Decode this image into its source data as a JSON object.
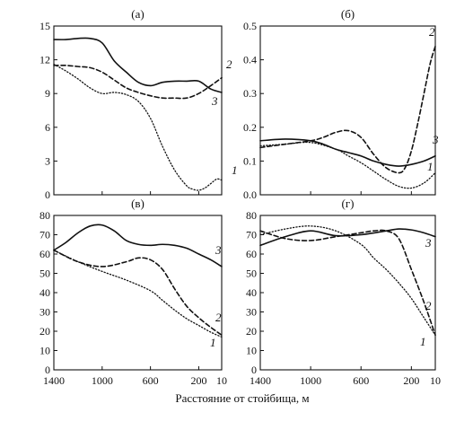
{
  "xlabel": "Расстояние от стойбища, м",
  "chart_data": [
    {
      "panel": "(а)",
      "type": "line",
      "xlabel": "",
      "ylabel": "",
      "xlim": [
        1400,
        10
      ],
      "ylim": [
        0,
        15
      ],
      "yticks": [
        0,
        3,
        6,
        9,
        12,
        15
      ],
      "xticks": [
        1400,
        1000,
        600,
        200,
        10
      ],
      "series": [
        {
          "name": "1",
          "style": "dotted",
          "x": [
            1400,
            1300,
            1200,
            1100,
            1000,
            900,
            800,
            700,
            600,
            500,
            400,
            300,
            250,
            200,
            150,
            100,
            50,
            10
          ],
          "y": [
            11.6,
            11.0,
            10.3,
            9.5,
            9.0,
            9.1,
            8.9,
            8.3,
            6.8,
            4.3,
            2.2,
            0.8,
            0.5,
            0.4,
            0.6,
            1.0,
            1.4,
            1.3
          ]
        },
        {
          "name": "2",
          "style": "solid",
          "x": [
            1400,
            1300,
            1200,
            1100,
            1000,
            900,
            800,
            700,
            600,
            500,
            400,
            300,
            200,
            100,
            10
          ],
          "y": [
            13.8,
            13.8,
            13.9,
            13.9,
            13.5,
            11.9,
            10.9,
            10.0,
            9.7,
            10.0,
            10.1,
            10.1,
            10.1,
            9.4,
            9.1
          ]
        },
        {
          "name": "3",
          "style": "dashed",
          "x": [
            1400,
            1300,
            1200,
            1100,
            1000,
            900,
            800,
            700,
            600,
            500,
            400,
            300,
            200,
            100,
            10
          ],
          "y": [
            11.5,
            11.5,
            11.4,
            11.3,
            10.9,
            10.2,
            9.5,
            9.1,
            8.8,
            8.6,
            8.6,
            8.6,
            9.0,
            9.7,
            10.4
          ]
        }
      ],
      "series_labels": [
        "1",
        "2",
        "3"
      ]
    },
    {
      "panel": "(б)",
      "type": "line",
      "xlabel": "",
      "ylabel": "",
      "xlim": [
        1400,
        10
      ],
      "ylim": [
        0,
        0.5
      ],
      "yticks": [
        0,
        0.1,
        0.2,
        0.3,
        0.4,
        0.5
      ],
      "xticks": [
        1400,
        1000,
        600,
        200,
        10
      ],
      "series": [
        {
          "name": "1",
          "style": "dotted",
          "x": [
            1400,
            1200,
            1000,
            800,
            700,
            600,
            500,
            400,
            300,
            200,
            100,
            10
          ],
          "y": [
            0.145,
            0.15,
            0.155,
            0.135,
            0.115,
            0.095,
            0.07,
            0.045,
            0.025,
            0.02,
            0.035,
            0.065
          ]
        },
        {
          "name": "2",
          "style": "dashed",
          "x": [
            1400,
            1200,
            1000,
            900,
            800,
            700,
            600,
            500,
            400,
            300,
            250,
            200,
            150,
            100,
            50,
            10
          ],
          "y": [
            0.14,
            0.15,
            0.16,
            0.17,
            0.185,
            0.19,
            0.17,
            0.12,
            0.08,
            0.065,
            0.08,
            0.13,
            0.21,
            0.3,
            0.39,
            0.44
          ]
        },
        {
          "name": "3",
          "style": "solid",
          "x": [
            1400,
            1200,
            1000,
            900,
            800,
            700,
            600,
            500,
            400,
            300,
            200,
            100,
            10
          ],
          "y": [
            0.16,
            0.165,
            0.16,
            0.15,
            0.135,
            0.125,
            0.115,
            0.1,
            0.09,
            0.085,
            0.09,
            0.1,
            0.115
          ]
        }
      ],
      "series_labels": [
        "1",
        "2",
        "3"
      ]
    },
    {
      "panel": "(в)",
      "type": "line",
      "xlabel": "",
      "ylabel": "",
      "xlim": [
        1400,
        10
      ],
      "ylim": [
        0,
        80
      ],
      "yticks": [
        0,
        10,
        20,
        30,
        40,
        50,
        60,
        70,
        80
      ],
      "xticks": [
        1400,
        1000,
        600,
        200,
        10
      ],
      "series": [
        {
          "name": "1",
          "style": "dotted",
          "x": [
            1400,
            1200,
            1000,
            800,
            600,
            500,
            400,
            300,
            200,
            100,
            10
          ],
          "y": [
            62,
            56,
            51,
            46.5,
            41,
            36,
            31,
            26.5,
            23,
            19.5,
            17
          ]
        },
        {
          "name": "2",
          "style": "dashed",
          "x": [
            1400,
            1200,
            1000,
            800,
            700,
            600,
            500,
            400,
            300,
            200,
            100,
            10
          ],
          "y": [
            62,
            56,
            53.5,
            56,
            58,
            57,
            52,
            42,
            33,
            27,
            22,
            18
          ]
        },
        {
          "name": "3",
          "style": "solid",
          "x": [
            1400,
            1300,
            1200,
            1100,
            1000,
            900,
            800,
            700,
            600,
            500,
            400,
            300,
            200,
            100,
            10
          ],
          "y": [
            62,
            66,
            71,
            74.5,
            75,
            72,
            67,
            65,
            64.5,
            65,
            64.5,
            63,
            60,
            57,
            53.5
          ]
        }
      ],
      "series_labels": [
        "1",
        "2",
        "3"
      ]
    },
    {
      "panel": "(г)",
      "type": "line",
      "xlabel": "",
      "ylabel": "",
      "xlim": [
        1400,
        10
      ],
      "ylim": [
        0,
        80
      ],
      "yticks": [
        0,
        10,
        20,
        30,
        40,
        50,
        60,
        70,
        80
      ],
      "xticks": [
        1400,
        1000,
        600,
        200,
        10
      ],
      "series": [
        {
          "name": "1",
          "style": "dotted",
          "x": [
            1400,
            1200,
            1000,
            800,
            600,
            500,
            400,
            300,
            200,
            100,
            10
          ],
          "y": [
            70,
            73,
            74.5,
            72,
            65,
            58,
            52,
            45,
            37,
            27,
            18
          ]
        },
        {
          "name": "2",
          "style": "dashed",
          "x": [
            1400,
            1200,
            1000,
            800,
            600,
            500,
            400,
            300,
            200,
            100,
            10
          ],
          "y": [
            72,
            68,
            67,
            69,
            71,
            72,
            72,
            68,
            52,
            35,
            18
          ]
        },
        {
          "name": "3",
          "style": "solid",
          "x": [
            1400,
            1200,
            1000,
            800,
            600,
            400,
            300,
            200,
            100,
            10
          ],
          "y": [
            64.5,
            69,
            72,
            69.5,
            70,
            72,
            73,
            72.5,
            71,
            69
          ]
        }
      ],
      "series_labels": [
        "1",
        "2",
        "3"
      ]
    }
  ]
}
